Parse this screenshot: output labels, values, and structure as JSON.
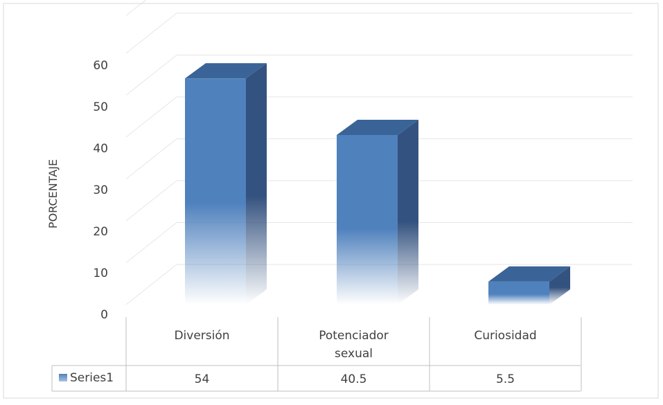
{
  "chart_data": {
    "type": "bar",
    "style": "3d-column-with-data-table",
    "title": "",
    "xlabel": "",
    "ylabel": "PORCENTAJE",
    "categories": [
      "Diversión",
      "Potenciador sexual",
      "Curiosidad"
    ],
    "category_lines": [
      [
        "Diversión"
      ],
      [
        "Potenciador",
        "sexual"
      ],
      [
        "Curiosidad"
      ]
    ],
    "series": [
      {
        "name": "Series1",
        "values": [
          54,
          40.5,
          5.5
        ],
        "labels": [
          "54",
          "40.5",
          "5.5"
        ]
      }
    ],
    "ylim": [
      0,
      60
    ],
    "yticks": [
      "0",
      "10",
      "20",
      "30",
      "40",
      "50",
      "60"
    ],
    "grid": true,
    "legend": "data-table-left",
    "colors": {
      "bar_front": "#4F81BD",
      "bar_side": "#34527F",
      "bar_top": "#3A6497",
      "grid": "#E6E6E6",
      "table_border": "#BFBFBF",
      "text": "#404040"
    }
  }
}
